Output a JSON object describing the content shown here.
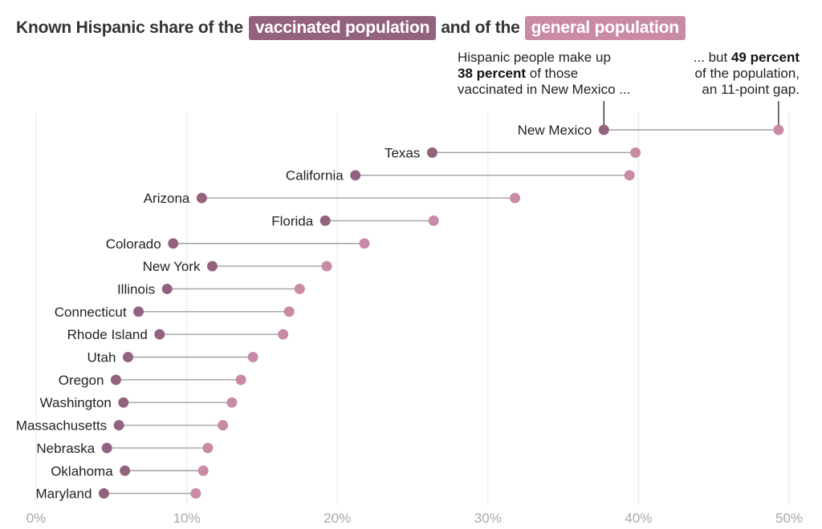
{
  "title": {
    "prefix": "Known Hispanic share of the",
    "chip_vaccinated": "vaccinated population",
    "middle": "and of the",
    "chip_general": "general population"
  },
  "annotations": {
    "left": {
      "line1": "Hispanic people make up",
      "bold": "38 percent",
      "line2_rest": " of those",
      "line3": "vaccinated in New Mexico ..."
    },
    "right": {
      "line1_pre": "... but ",
      "bold": "49 percent",
      "line2": "of the population,",
      "line3": "an 11-point gap."
    }
  },
  "colors": {
    "vaccinated": "#93627f",
    "general": "#c98aa6",
    "connector": "#a0a0a0",
    "grid": "#e6e6e6"
  },
  "chart_data": {
    "type": "scatter",
    "subtype": "dumbbell",
    "x_axis": {
      "min": 0,
      "max": 50,
      "ticks": [
        0,
        10,
        20,
        30,
        40,
        50
      ],
      "tick_labels": [
        "0%",
        "10%",
        "20%",
        "30%",
        "40%",
        "50%"
      ]
    },
    "grid": true,
    "series": [
      {
        "name": "vaccinated population",
        "key": "vaccinated"
      },
      {
        "name": "general population",
        "key": "general"
      }
    ],
    "rows": [
      {
        "state": "New Mexico",
        "vaccinated": 37.7,
        "general": 49.3
      },
      {
        "state": "Texas",
        "vaccinated": 26.3,
        "general": 39.8
      },
      {
        "state": "California",
        "vaccinated": 21.2,
        "general": 39.4
      },
      {
        "state": "Arizona",
        "vaccinated": 11.0,
        "general": 31.8
      },
      {
        "state": "Florida",
        "vaccinated": 19.2,
        "general": 26.4
      },
      {
        "state": "Colorado",
        "vaccinated": 9.1,
        "general": 21.8
      },
      {
        "state": "New York",
        "vaccinated": 11.7,
        "general": 19.3
      },
      {
        "state": "Illinois",
        "vaccinated": 8.7,
        "general": 17.5
      },
      {
        "state": "Connecticut",
        "vaccinated": 6.8,
        "general": 16.8
      },
      {
        "state": "Rhode Island",
        "vaccinated": 8.2,
        "general": 16.4
      },
      {
        "state": "Utah",
        "vaccinated": 6.1,
        "general": 14.4
      },
      {
        "state": "Oregon",
        "vaccinated": 5.3,
        "general": 13.6
      },
      {
        "state": "Washington",
        "vaccinated": 5.8,
        "general": 13.0
      },
      {
        "state": "Massachusetts",
        "vaccinated": 5.5,
        "general": 12.4
      },
      {
        "state": "Nebraska",
        "vaccinated": 4.7,
        "general": 11.4
      },
      {
        "state": "Oklahoma",
        "vaccinated": 5.9,
        "general": 11.1
      },
      {
        "state": "Maryland",
        "vaccinated": 4.5,
        "general": 10.6
      }
    ]
  }
}
